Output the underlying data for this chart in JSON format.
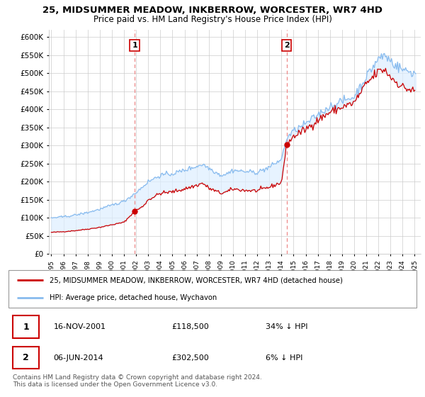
{
  "title": "25, MIDSUMMER MEADOW, INKBERROW, WORCESTER, WR7 4HD",
  "subtitle": "Price paid vs. HM Land Registry's House Price Index (HPI)",
  "legend_line1": "25, MIDSUMMER MEADOW, INKBERROW, WORCESTER, WR7 4HD (detached house)",
  "legend_line2": "HPI: Average price, detached house, Wychavon",
  "annotation1_date": "16-NOV-2001",
  "annotation1_price": "£118,500",
  "annotation1_hpi": "34% ↓ HPI",
  "annotation2_date": "06-JUN-2014",
  "annotation2_price": "£302,500",
  "annotation2_hpi": "6% ↓ HPI",
  "footer": "Contains HM Land Registry data © Crown copyright and database right 2024.\nThis data is licensed under the Open Government Licence v3.0.",
  "sale1_x": 2001.88,
  "sale1_y": 118500,
  "sale2_x": 2014.43,
  "sale2_y": 302500,
  "price_line_color": "#cc0000",
  "hpi_line_color": "#88bbee",
  "fill_color": "#ddeeff",
  "vline_color": "#ee8888",
  "ylim_min": 0,
  "ylim_max": 620000,
  "xlim_min": 1994.8,
  "xlim_max": 2025.5,
  "yticks": [
    0,
    50000,
    100000,
    150000,
    200000,
    250000,
    300000,
    350000,
    400000,
    450000,
    500000,
    550000,
    600000
  ]
}
